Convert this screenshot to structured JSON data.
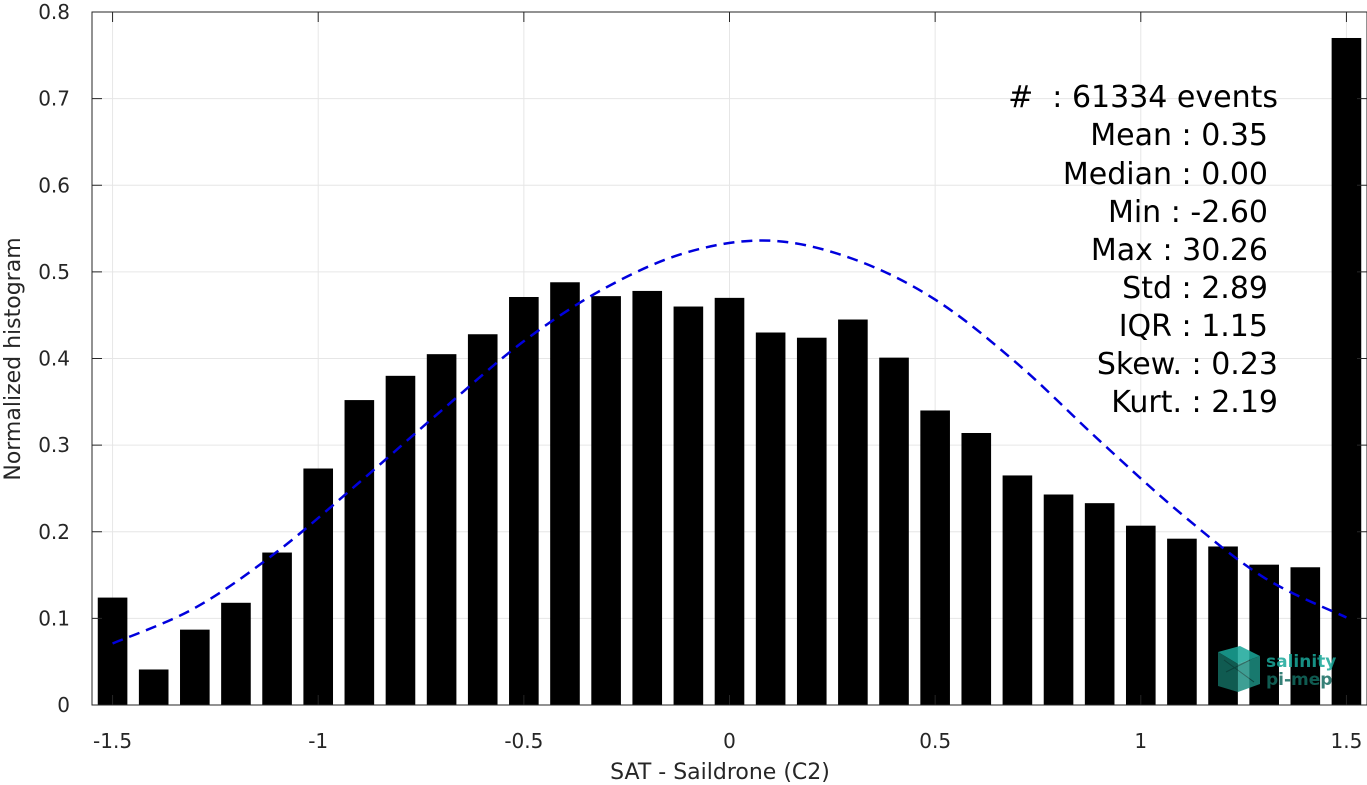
{
  "chart_data": {
    "type": "bar",
    "xlabel": "SAT - Saildrone (C2)",
    "ylabel": "Normalized histogram",
    "xlim": [
      -1.55,
      1.55
    ],
    "ylim": [
      0,
      0.8
    ],
    "xticks": [
      -1.5,
      -1,
      -0.5,
      0,
      0.5,
      1,
      1.5
    ],
    "xtick_labels": [
      "-1.5",
      "-1",
      "-0.5",
      "0",
      "0.5",
      "1",
      "1.5"
    ],
    "yticks": [
      0,
      0.1,
      0.2,
      0.3,
      0.4,
      0.5,
      0.6,
      0.7,
      0.8
    ],
    "ytick_labels": [
      "0",
      "0.1",
      "0.2",
      "0.3",
      "0.4",
      "0.5",
      "0.6",
      "0.7",
      "0.8"
    ],
    "grid": true,
    "bar_color": "#000000",
    "x": [
      -1.5,
      -1.4,
      -1.3,
      -1.2,
      -1.1,
      -1.0,
      -0.9,
      -0.8,
      -0.7,
      -0.6,
      -0.5,
      -0.4,
      -0.3,
      -0.2,
      -0.1,
      0.0,
      0.1,
      0.2,
      0.3,
      0.4,
      0.5,
      0.6,
      0.7,
      0.8,
      0.9,
      1.0,
      1.1,
      1.2,
      1.3,
      1.4,
      1.5
    ],
    "values": [
      0.124,
      0.041,
      0.087,
      0.118,
      0.176,
      0.273,
      0.352,
      0.38,
      0.405,
      0.428,
      0.471,
      0.488,
      0.472,
      0.478,
      0.46,
      0.47,
      0.43,
      0.424,
      0.445,
      0.401,
      0.34,
      0.314,
      0.265,
      0.243,
      0.233,
      0.207,
      0.192,
      0.183,
      0.162,
      0.159,
      0.77
    ],
    "fit_curve": {
      "style": "dashed",
      "color": "#0000dd",
      "x": [
        -1.5,
        -1.3,
        -1.1,
        -0.9,
        -0.7,
        -0.5,
        -0.3,
        -0.1,
        0.1,
        0.3,
        0.5,
        0.7,
        0.9,
        1.1,
        1.3,
        1.5
      ],
      "y": [
        0.071,
        0.112,
        0.177,
        0.257,
        0.34,
        0.42,
        0.482,
        0.523,
        0.536,
        0.515,
        0.468,
        0.394,
        0.305,
        0.22,
        0.147,
        0.101
      ]
    },
    "stats": [
      "#  : 61334 events",
      "Mean : 0.35",
      "Median : 0.00",
      "Min : -2.60",
      "Max : 30.26",
      "Std : 2.89",
      "IQR : 1.15",
      "Skew. : 0.23",
      "Kurt. : 2.19"
    ]
  },
  "logo": {
    "line1": "salinity",
    "line2": "pi-mep",
    "color_teal": "#1aa89a",
    "color_dark": "#136b60"
  }
}
